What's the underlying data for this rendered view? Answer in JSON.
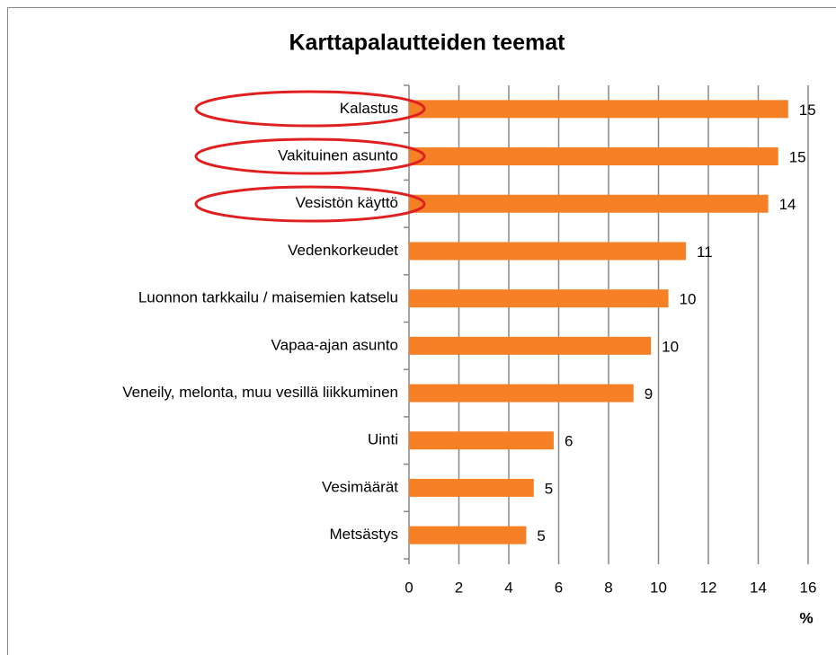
{
  "chart_data": {
    "type": "barh",
    "title": "Karttapalautteiden teemat",
    "categories": [
      "Kalastus",
      "Vakituinen asunto",
      "Vesistön käyttö",
      "Vedenkorkeudet",
      "Luonnon tarkkailu / maisemien katselu",
      "Vapaa-ajan asunto",
      "Veneily, melonta, muu vesillä liikkuminen",
      "Uinti",
      "Vesimäärät",
      "Metsästys"
    ],
    "values": [
      15.2,
      14.8,
      14.4,
      11.1,
      10.4,
      9.7,
      9.0,
      5.8,
      5.0,
      4.7
    ],
    "value_labels": [
      "15",
      "15",
      "14",
      "11",
      "10",
      "10",
      "9",
      "6",
      "5",
      "5"
    ],
    "color": "#f58025",
    "x_label": "%",
    "xlim": [
      0,
      16
    ],
    "xticks": [
      0,
      2,
      4,
      6,
      8,
      10,
      12,
      14,
      16
    ],
    "grid": true
  }
}
